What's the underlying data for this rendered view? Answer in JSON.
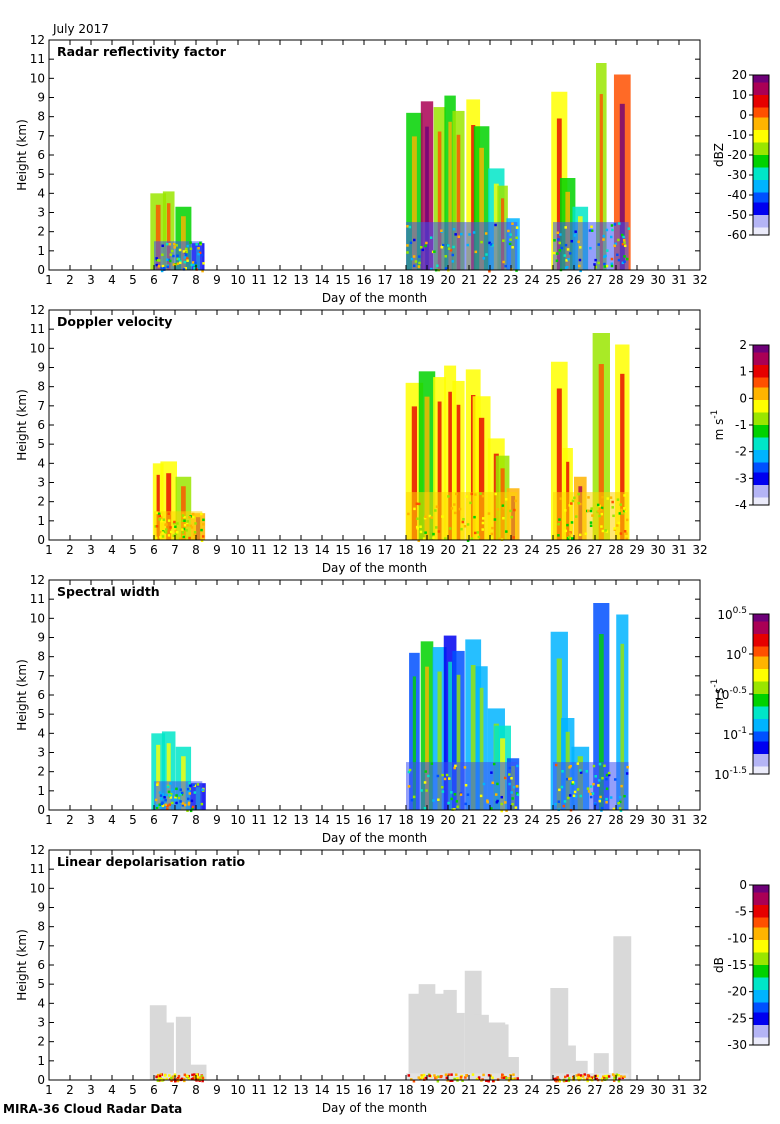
{
  "figure": {
    "period_label": "July 2017",
    "footer": "MIRA-36 Cloud Radar Data"
  },
  "chart_data": [
    {
      "type": "heatmap",
      "title": "Radar reflectivity factor",
      "xlabel": "Day of the month",
      "ylabel": "Height (km)",
      "xlim": [
        1,
        32
      ],
      "ylim": [
        0,
        12
      ],
      "x_ticks": [
        "1",
        "2",
        "3",
        "4",
        "5",
        "6",
        "7",
        "8",
        "9",
        "10",
        "11",
        "12",
        "13",
        "14",
        "15",
        "16",
        "17",
        "18",
        "19",
        "20",
        "21",
        "22",
        "23",
        "24",
        "25",
        "26",
        "27",
        "28",
        "29",
        "30",
        "31",
        "32"
      ],
      "y_ticks": [
        "0",
        "1",
        "2",
        "3",
        "4",
        "5",
        "6",
        "7",
        "8",
        "9",
        "10",
        "11",
        "12"
      ],
      "colorbar": {
        "unit": "dBZ",
        "ticks": [
          "20",
          "10",
          "0",
          "-10",
          "-20",
          "-30",
          "-40",
          "-50",
          "-60"
        ],
        "range": [
          -60,
          20
        ]
      },
      "echo_periods_days": [
        [
          6.0,
          8.3
        ],
        [
          18.0,
          23.3
        ],
        [
          25.0,
          28.6
        ]
      ],
      "echo_columns": [
        {
          "x": 6.2,
          "top": 4.0,
          "v": 0.55
        },
        {
          "x": 6.7,
          "top": 4.1,
          "v": 0.5
        },
        {
          "x": 7.4,
          "top": 3.3,
          "v": 0.45
        },
        {
          "x": 8.1,
          "top": 1.4,
          "v": 0.15
        },
        {
          "x": 18.4,
          "top": 8.2,
          "v": 0.45
        },
        {
          "x": 19.0,
          "top": 8.8,
          "v": 0.9
        },
        {
          "x": 19.6,
          "top": 8.5,
          "v": 0.55
        },
        {
          "x": 20.1,
          "top": 9.1,
          "v": 0.45
        },
        {
          "x": 20.5,
          "top": 8.3,
          "v": 0.5
        },
        {
          "x": 21.2,
          "top": 8.9,
          "v": 0.6
        },
        {
          "x": 21.6,
          "top": 7.5,
          "v": 0.45
        },
        {
          "x": 22.3,
          "top": 5.3,
          "v": 0.4
        },
        {
          "x": 22.6,
          "top": 4.4,
          "v": 0.5
        },
        {
          "x": 23.1,
          "top": 2.7,
          "v": 0.3
        },
        {
          "x": 25.3,
          "top": 9.3,
          "v": 0.6
        },
        {
          "x": 25.7,
          "top": 4.8,
          "v": 0.45
        },
        {
          "x": 26.3,
          "top": 3.3,
          "v": 0.4
        },
        {
          "x": 27.3,
          "top": 10.8,
          "v": 0.55
        },
        {
          "x": 28.3,
          "top": 10.2,
          "v": 0.8
        }
      ]
    },
    {
      "type": "heatmap",
      "title": "Doppler velocity",
      "xlabel": "Day of the month",
      "ylabel": "Height (km)",
      "xlim": [
        1,
        32
      ],
      "ylim": [
        0,
        12
      ],
      "x_ticks": [
        "1",
        "2",
        "3",
        "4",
        "5",
        "6",
        "7",
        "8",
        "9",
        "10",
        "11",
        "12",
        "13",
        "14",
        "15",
        "16",
        "17",
        "18",
        "19",
        "20",
        "21",
        "22",
        "23",
        "24",
        "25",
        "26",
        "27",
        "28",
        "29",
        "30",
        "31",
        "32"
      ],
      "y_ticks": [
        "0",
        "1",
        "2",
        "3",
        "4",
        "5",
        "6",
        "7",
        "8",
        "9",
        "10",
        "11",
        "12"
      ],
      "colorbar": {
        "unit": "m s",
        "unit_exponent": "-1",
        "ticks": [
          "2",
          "1",
          "0",
          "-1",
          "-2",
          "-3",
          "-4"
        ],
        "range": [
          -4,
          2
        ]
      },
      "echo_periods_days": [
        [
          6.0,
          8.3
        ],
        [
          18.0,
          23.3
        ],
        [
          25.0,
          28.6
        ]
      ],
      "echo_columns": [
        {
          "x": 6.2,
          "top": 4.0,
          "v": 0.62
        },
        {
          "x": 6.7,
          "top": 4.1,
          "v": 0.6
        },
        {
          "x": 7.4,
          "top": 3.3,
          "v": 0.55
        },
        {
          "x": 8.1,
          "top": 1.4,
          "v": 0.7
        },
        {
          "x": 18.4,
          "top": 8.2,
          "v": 0.62
        },
        {
          "x": 19.0,
          "top": 8.8,
          "v": 0.45
        },
        {
          "x": 19.6,
          "top": 8.5,
          "v": 0.6
        },
        {
          "x": 20.1,
          "top": 9.1,
          "v": 0.62
        },
        {
          "x": 20.5,
          "top": 8.3,
          "v": 0.63
        },
        {
          "x": 21.2,
          "top": 8.9,
          "v": 0.6
        },
        {
          "x": 21.6,
          "top": 7.5,
          "v": 0.62
        },
        {
          "x": 22.3,
          "top": 5.3,
          "v": 0.6
        },
        {
          "x": 22.6,
          "top": 4.4,
          "v": 0.55
        },
        {
          "x": 23.1,
          "top": 2.7,
          "v": 0.68
        },
        {
          "x": 25.3,
          "top": 9.3,
          "v": 0.62
        },
        {
          "x": 25.7,
          "top": 4.8,
          "v": 0.6
        },
        {
          "x": 26.3,
          "top": 3.3,
          "v": 0.66
        },
        {
          "x": 27.3,
          "top": 10.8,
          "v": 0.5
        },
        {
          "x": 28.3,
          "top": 10.2,
          "v": 0.62
        }
      ]
    },
    {
      "type": "heatmap",
      "title": "Spectral width",
      "xlabel": "Day of the month",
      "ylabel": "Height (km)",
      "xlim": [
        1,
        32
      ],
      "ylim": [
        0,
        12
      ],
      "x_ticks": [
        "1",
        "2",
        "3",
        "4",
        "5",
        "6",
        "7",
        "8",
        "9",
        "10",
        "11",
        "12",
        "13",
        "14",
        "15",
        "16",
        "17",
        "18",
        "19",
        "20",
        "21",
        "22",
        "23",
        "24",
        "25",
        "26",
        "27",
        "28",
        "29",
        "30",
        "31",
        "32"
      ],
      "y_ticks": [
        "0",
        "1",
        "2",
        "3",
        "4",
        "5",
        "6",
        "7",
        "8",
        "9",
        "10",
        "11",
        "12"
      ],
      "colorbar": {
        "unit": "m s",
        "unit_exponent": "-1",
        "scale": "log",
        "ticks": [
          {
            "base": "10",
            "exp": "0.5"
          },
          {
            "base": "10",
            "exp": "0"
          },
          {
            "base": "10",
            "exp": "-0.5"
          },
          {
            "base": "10",
            "exp": "-1"
          },
          {
            "base": "10",
            "exp": "-1.5"
          }
        ],
        "range": [
          -1.5,
          0.5
        ]
      },
      "echo_periods_days": [
        [
          6.0,
          8.3
        ],
        [
          18.0,
          23.3
        ],
        [
          25.0,
          28.6
        ]
      ],
      "echo_columns": [
        {
          "x": 6.2,
          "top": 4.0,
          "v": 0.4
        },
        {
          "x": 6.7,
          "top": 4.1,
          "v": 0.38
        },
        {
          "x": 7.4,
          "top": 3.3,
          "v": 0.35
        },
        {
          "x": 8.1,
          "top": 1.4,
          "v": 0.12
        },
        {
          "x": 18.4,
          "top": 8.2,
          "v": 0.22
        },
        {
          "x": 19.0,
          "top": 8.8,
          "v": 0.45
        },
        {
          "x": 19.6,
          "top": 8.5,
          "v": 0.3
        },
        {
          "x": 20.1,
          "top": 9.1,
          "v": 0.15
        },
        {
          "x": 20.5,
          "top": 8.3,
          "v": 0.25
        },
        {
          "x": 21.2,
          "top": 8.9,
          "v": 0.3
        },
        {
          "x": 21.6,
          "top": 7.5,
          "v": 0.28
        },
        {
          "x": 22.3,
          "top": 5.3,
          "v": 0.3
        },
        {
          "x": 22.6,
          "top": 4.4,
          "v": 0.35
        },
        {
          "x": 23.1,
          "top": 2.7,
          "v": 0.25
        },
        {
          "x": 25.3,
          "top": 9.3,
          "v": 0.3
        },
        {
          "x": 25.7,
          "top": 4.8,
          "v": 0.3
        },
        {
          "x": 26.3,
          "top": 3.3,
          "v": 0.3
        },
        {
          "x": 27.3,
          "top": 10.8,
          "v": 0.22
        },
        {
          "x": 28.3,
          "top": 10.2,
          "v": 0.3
        }
      ]
    },
    {
      "type": "heatmap",
      "title": "Linear depolarisation ratio",
      "xlabel": "Day of the month",
      "ylabel": "Height (km)",
      "xlim": [
        1,
        32
      ],
      "ylim": [
        0,
        12
      ],
      "x_ticks": [
        "1",
        "2",
        "3",
        "4",
        "5",
        "6",
        "7",
        "8",
        "9",
        "10",
        "11",
        "12",
        "13",
        "14",
        "15",
        "16",
        "17",
        "18",
        "19",
        "20",
        "21",
        "22",
        "23",
        "24",
        "25",
        "26",
        "27",
        "28",
        "29",
        "30",
        "31",
        "32"
      ],
      "y_ticks": [
        "0",
        "1",
        "2",
        "3",
        "4",
        "5",
        "6",
        "7",
        "8",
        "9",
        "10",
        "11",
        "12"
      ],
      "colorbar": {
        "unit": "dB",
        "ticks": [
          "0",
          "-5",
          "-10",
          "-15",
          "-20",
          "-25",
          "-30"
        ],
        "range": [
          -30,
          0
        ]
      },
      "echo_periods_days": [
        [
          6.0,
          8.3
        ],
        [
          18.0,
          23.3
        ],
        [
          25.0,
          28.6
        ]
      ],
      "echo_columns": [
        {
          "x": 6.2,
          "top": 3.9,
          "v": 0.0
        },
        {
          "x": 6.7,
          "top": 3.0,
          "v": 0.0
        },
        {
          "x": 7.4,
          "top": 3.3,
          "v": 0.0
        },
        {
          "x": 8.1,
          "top": 0.8,
          "v": 0.0
        },
        {
          "x": 18.4,
          "top": 4.5,
          "v": 0.0
        },
        {
          "x": 19.0,
          "top": 5.0,
          "v": 0.0
        },
        {
          "x": 19.6,
          "top": 4.5,
          "v": 0.0
        },
        {
          "x": 20.1,
          "top": 4.7,
          "v": 0.0
        },
        {
          "x": 20.5,
          "top": 3.5,
          "v": 0.0
        },
        {
          "x": 21.2,
          "top": 5.7,
          "v": 0.0
        },
        {
          "x": 21.6,
          "top": 3.4,
          "v": 0.0
        },
        {
          "x": 22.3,
          "top": 3.0,
          "v": 0.0
        },
        {
          "x": 22.6,
          "top": 2.9,
          "v": 0.0
        },
        {
          "x": 23.1,
          "top": 1.2,
          "v": 0.0
        },
        {
          "x": 25.3,
          "top": 4.8,
          "v": 0.0
        },
        {
          "x": 25.7,
          "top": 1.8,
          "v": 0.0
        },
        {
          "x": 26.3,
          "top": 1.0,
          "v": 0.0
        },
        {
          "x": 27.3,
          "top": 1.4,
          "v": 0.0
        },
        {
          "x": 28.3,
          "top": 7.5,
          "v": 0.0
        }
      ]
    }
  ]
}
